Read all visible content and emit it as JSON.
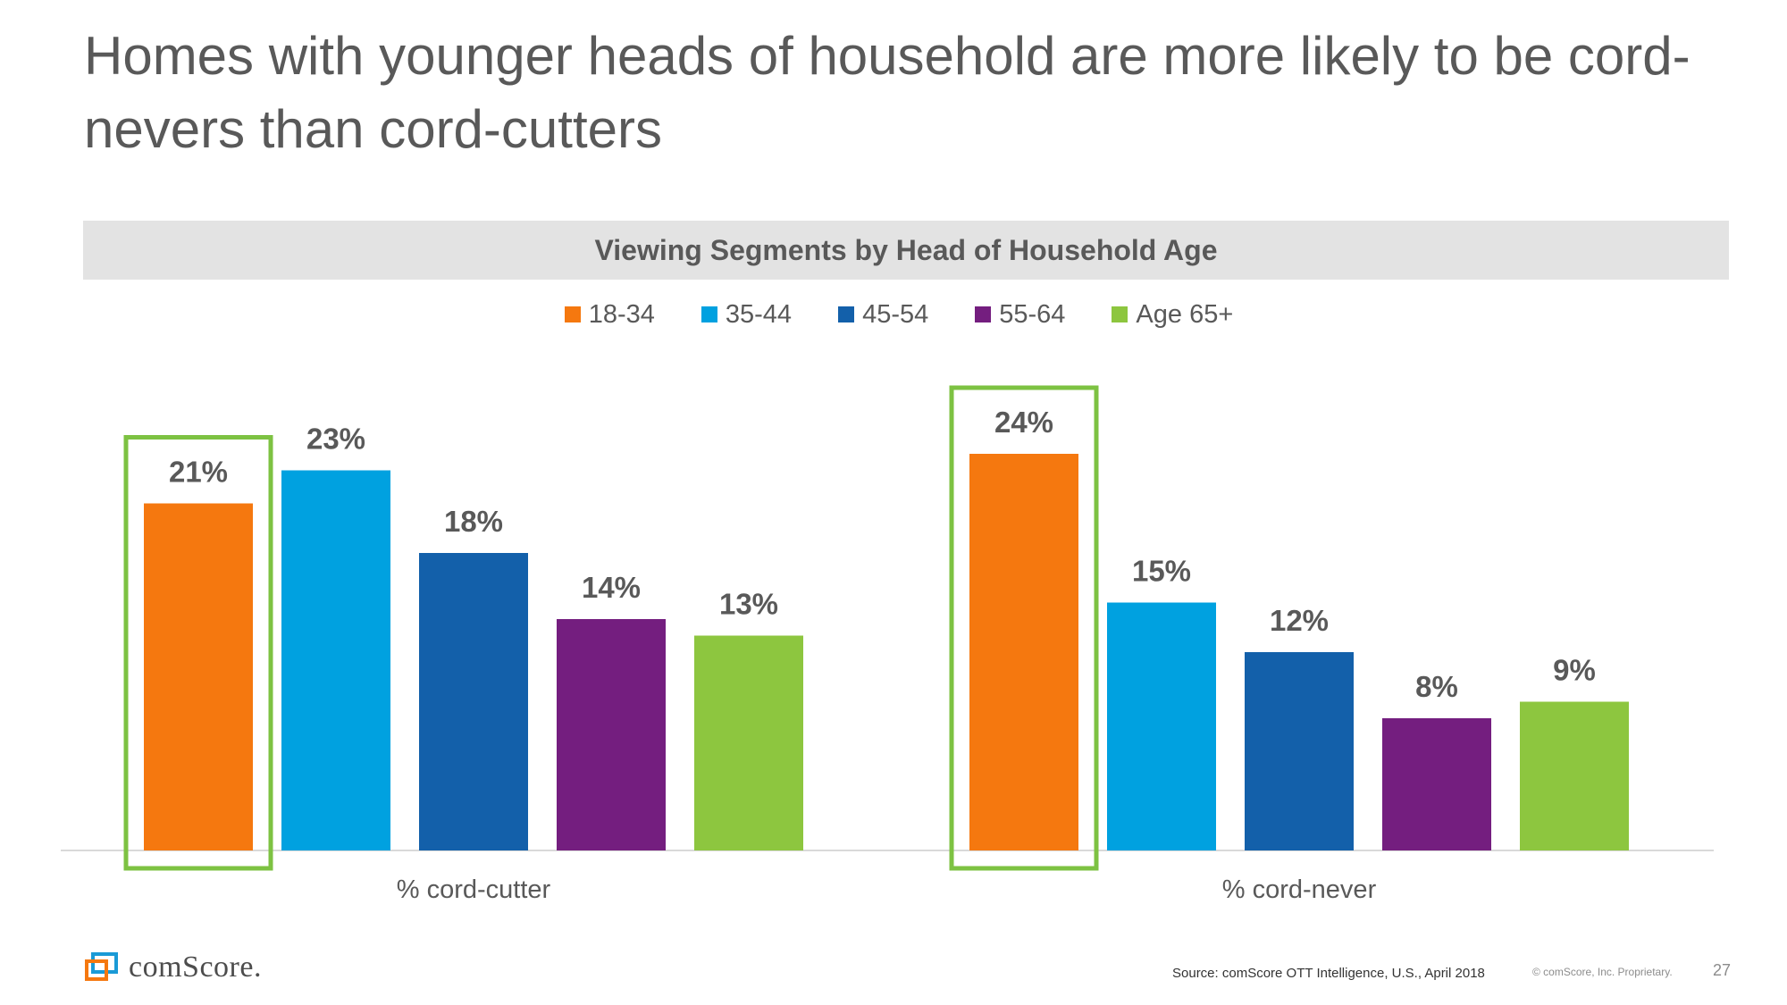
{
  "slide": {
    "title": "Homes with younger heads of household are more likely to be cord-nevers than cord-cutters",
    "source": "Source: comScore OTT Intelligence, U.S., April 2018",
    "copyright": "© comScore, Inc. Proprietary.",
    "page_number": "27",
    "logo_text": "comScore."
  },
  "colors": {
    "18-34": "#f5780f",
    "35-44": "#00a1e0",
    "45-54": "#1360aa",
    "55-64": "#741e7f",
    "Age 65+": "#8dc63f",
    "highlight": "#7dc242",
    "axis": "#d9d9d9"
  },
  "chart_data": {
    "type": "bar",
    "title": "Viewing Segments by Head of Household Age",
    "categories": [
      "% cord-cutter",
      "% cord-never"
    ],
    "series": [
      {
        "name": "18-34",
        "values": [
          21,
          24
        ]
      },
      {
        "name": "35-44",
        "values": [
          23,
          15
        ]
      },
      {
        "name": "45-54",
        "values": [
          18,
          12
        ]
      },
      {
        "name": "55-64",
        "values": [
          14,
          8
        ]
      },
      {
        "name": "Age 65+",
        "values": [
          13,
          9
        ]
      }
    ],
    "value_labels": [
      [
        "21%",
        "24%"
      ],
      [
        "23%",
        "15%"
      ],
      [
        "18%",
        "12%"
      ],
      [
        "14%",
        "8%"
      ],
      [
        "13%",
        "9%"
      ]
    ],
    "highlighted_series": "18-34",
    "legend_position": "top-center",
    "ylim": [
      0,
      24
    ],
    "grid": false,
    "xlabel": "",
    "ylabel": ""
  }
}
